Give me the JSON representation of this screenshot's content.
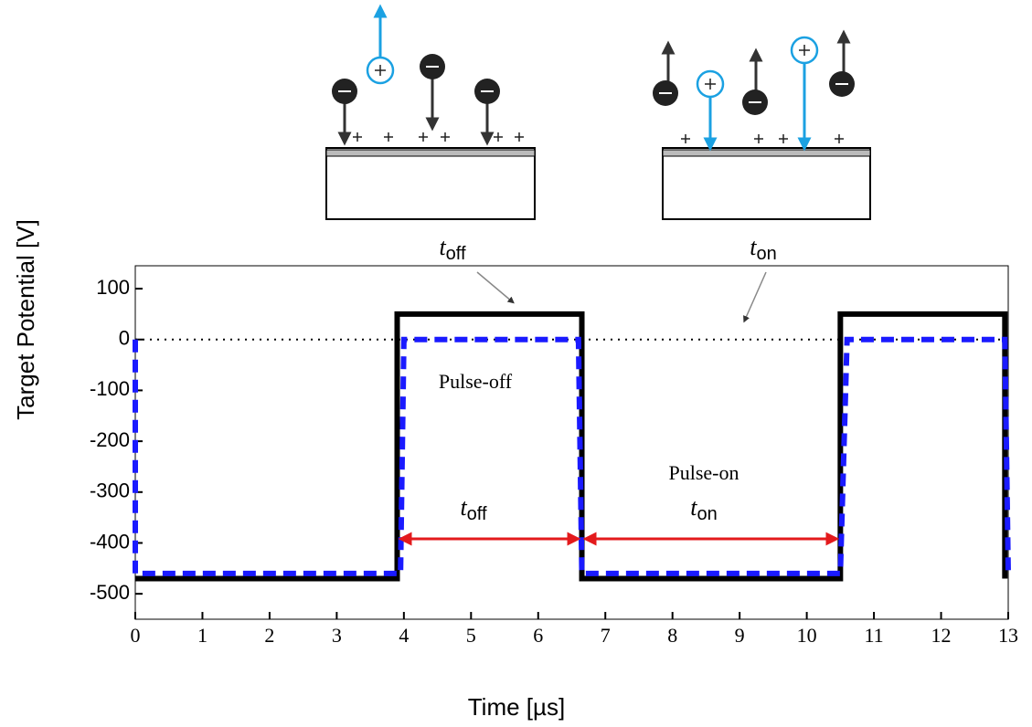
{
  "chart_data": {
    "type": "line",
    "x_label": "Time [µs]",
    "y_label": "Target Potential [V]",
    "xlim": [
      0,
      13
    ],
    "xticks": [
      0,
      1,
      2,
      3,
      4,
      5,
      6,
      7,
      8,
      9,
      10,
      11,
      12,
      13
    ],
    "ylim": [
      -550,
      145
    ],
    "yticks": [
      -500,
      -400,
      -300,
      -200,
      -100,
      0,
      100
    ],
    "reference_line": 0,
    "series": [
      {
        "color": "#000000",
        "x": [
          0,
          3.9,
          3.9,
          6.65,
          6.65,
          10.5,
          10.5,
          12.95,
          12.95
        ],
        "values": [
          -470,
          -470,
          50,
          50,
          -470,
          -470,
          50,
          50,
          -470
        ]
      },
      {
        "color": "#1a1aff",
        "dashed": true,
        "x": [
          0,
          0,
          3.95,
          4.0,
          6.6,
          6.65,
          10.5,
          10.6,
          12.95,
          13.0
        ],
        "values": [
          0,
          -460,
          -460,
          0,
          0,
          -460,
          -460,
          0,
          0,
          -460
        ]
      }
    ],
    "annotations": [
      "Pulse-off",
      "Pulse-on"
    ],
    "interval_labels": [
      {
        "symbol": "t",
        "subscript": "off"
      },
      {
        "symbol": "t",
        "subscript": "on"
      }
    ]
  }
}
